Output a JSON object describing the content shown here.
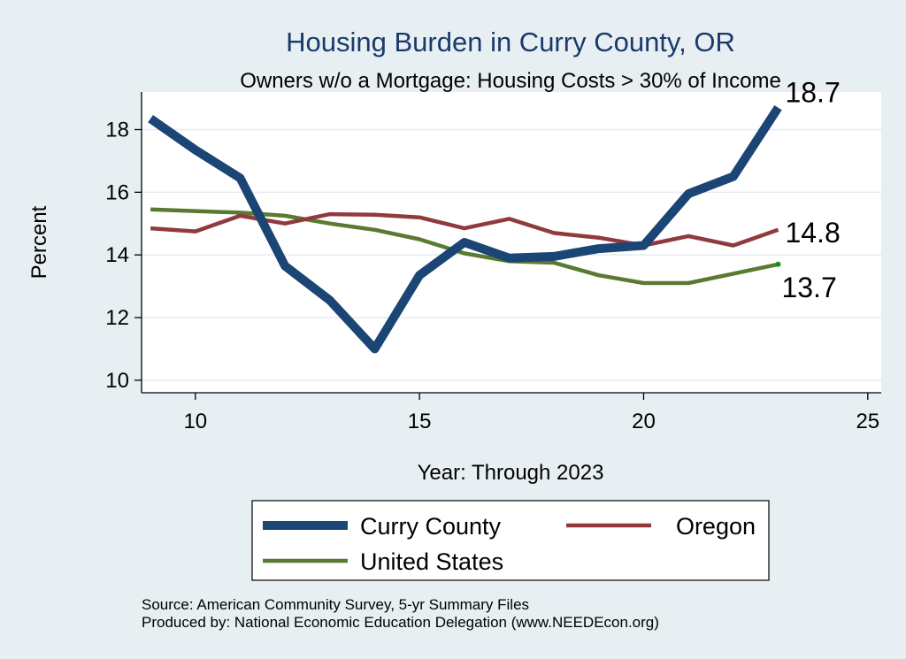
{
  "chart_data": {
    "type": "line",
    "title": "Housing Burden in Curry County, OR",
    "subtitle": "Owners w/o a Mortgage: Housing Costs > 30% of Income",
    "xlabel": "Year: Through 2023",
    "ylabel": "Percent",
    "xlim": [
      8.8,
      25.3
    ],
    "ylim": [
      9.6,
      19.2
    ],
    "xticks": [
      10,
      15,
      20,
      25
    ],
    "yticks": [
      10,
      12,
      14,
      16,
      18
    ],
    "grid": true,
    "legend_position": "bottom",
    "x": [
      9,
      10,
      11,
      12,
      13,
      14,
      15,
      16,
      17,
      18,
      19,
      20,
      21,
      22,
      23
    ],
    "series": [
      {
        "name": "Curry County",
        "color": "#1b4575",
        "width": "thick",
        "values": [
          18.35,
          17.35,
          16.45,
          13.65,
          12.55,
          11.0,
          13.35,
          14.4,
          13.9,
          13.95,
          14.2,
          14.3,
          15.95,
          16.5,
          18.7
        ],
        "end_label": "18.7"
      },
      {
        "name": "Oregon",
        "color": "#903a3d",
        "width": "medium",
        "values": [
          14.85,
          14.75,
          15.25,
          15.0,
          15.3,
          15.28,
          15.2,
          14.85,
          15.15,
          14.7,
          14.55,
          14.3,
          14.6,
          14.3,
          14.8
        ],
        "end_label": "14.8"
      },
      {
        "name": "United States",
        "color": "#5a7a32",
        "width": "medium",
        "values": [
          15.45,
          15.4,
          15.35,
          15.25,
          15.0,
          14.8,
          14.5,
          14.05,
          13.8,
          13.75,
          13.35,
          13.1,
          13.1,
          13.4,
          13.7
        ],
        "end_label": "13.7"
      }
    ],
    "source_lines": [
      "Source: American Community Survey, 5-yr Summary Files",
      "Produced by: National Economic Education Delegation (www.NEEDEcon.org)"
    ]
  }
}
